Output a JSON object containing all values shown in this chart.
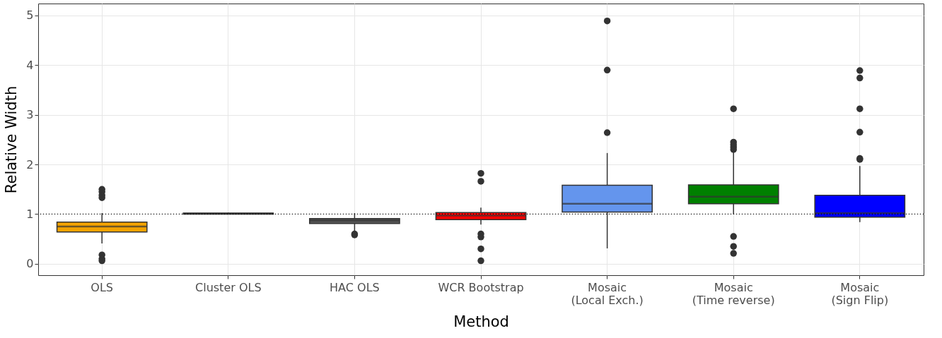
{
  "chart_data": {
    "type": "box",
    "xlabel": "Method",
    "ylabel": "Relative Width",
    "categories": [
      "OLS",
      "Cluster OLS",
      "HAC OLS",
      "WCR Bootstrap",
      "Mosaic\n(Local Exch.)",
      "Mosaic\n(Time reverse)",
      "Mosaic\n(Sign Flip)"
    ],
    "colors": [
      "#f5a300",
      "#555555",
      "#555555",
      "#ff0000",
      "#6495ed",
      "#008000",
      "#0000ff"
    ],
    "boxes": [
      {
        "low": 0.41,
        "q1": 0.64,
        "median": 0.75,
        "q3": 0.84,
        "high": 1.02,
        "outliers": [
          1.5,
          1.45,
          1.38,
          1.33,
          0.18,
          0.1,
          0.06
        ]
      },
      {
        "low": 1.0,
        "q1": 1.0,
        "median": 1.01,
        "q3": 1.02,
        "high": 1.03
      },
      {
        "low": 0.62,
        "q1": 0.81,
        "median": 0.87,
        "q3": 0.91,
        "high": 1.02,
        "outliers": [
          0.6,
          0.58
        ]
      },
      {
        "low": 0.79,
        "q1": 0.89,
        "median": 0.97,
        "q3": 1.03,
        "high": 1.13,
        "outliers": [
          1.82,
          1.66,
          0.6,
          0.54,
          0.3,
          0.06
        ]
      },
      {
        "low": 0.31,
        "q1": 1.04,
        "median": 1.21,
        "q3": 1.58,
        "high": 2.23,
        "outliers": [
          4.89,
          3.9,
          2.64
        ]
      },
      {
        "low": 1.0,
        "q1": 1.21,
        "median": 1.35,
        "q3": 1.59,
        "high": 2.28,
        "outliers": [
          3.12,
          2.45,
          2.4,
          2.35,
          2.3,
          0.55,
          0.35,
          0.21
        ]
      },
      {
        "low": 0.84,
        "q1": 0.94,
        "median": 1.02,
        "q3": 1.38,
        "high": 1.97,
        "outliers": [
          3.89,
          3.74,
          3.12,
          2.65,
          2.12,
          2.1
        ]
      }
    ],
    "ylim": [
      -0.23,
      5.24
    ],
    "yticks": [
      0,
      1,
      2,
      3,
      4,
      5
    ],
    "grid": true,
    "ref_lines": [
      {
        "axis": "y",
        "value": 1,
        "color": "#000000",
        "line_style": "dotted"
      }
    ]
  }
}
